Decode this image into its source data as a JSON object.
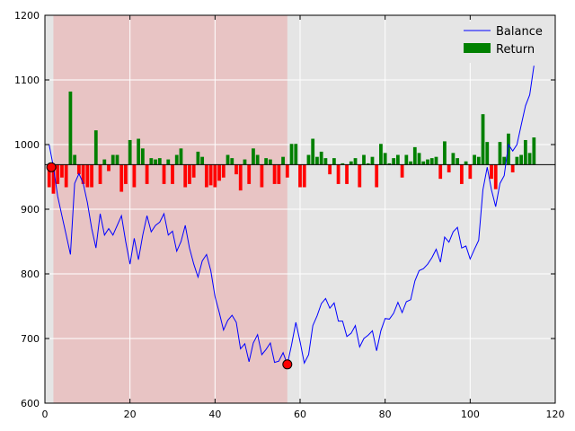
{
  "chart_data": {
    "type": "line",
    "title": "",
    "xlabel": "",
    "ylabel": "",
    "xlim": [
      0,
      120
    ],
    "ylim": [
      600,
      1200
    ],
    "x_ticks": [
      0,
      20,
      40,
      60,
      80,
      100,
      120
    ],
    "y_ticks": [
      600,
      700,
      800,
      900,
      1000,
      1100,
      1200
    ],
    "grid": true,
    "legend_position": "top-right",
    "background_color": "#e5e5e5",
    "highlight_region": {
      "x_start": 2,
      "x_end": 57,
      "color": "#e8c4c4"
    },
    "reference_line": {
      "y": 969,
      "color": "#000000"
    },
    "series": [
      {
        "name": "Balance",
        "kind": "line",
        "color": "#0000ff",
        "x": [
          1,
          2,
          3,
          4,
          5,
          6,
          7,
          8,
          9,
          10,
          11,
          12,
          13,
          14,
          15,
          16,
          17,
          18,
          19,
          20,
          21,
          22,
          23,
          24,
          25,
          26,
          27,
          28,
          29,
          30,
          31,
          32,
          33,
          34,
          35,
          36,
          37,
          38,
          39,
          40,
          41,
          42,
          43,
          44,
          45,
          46,
          47,
          48,
          49,
          50,
          51,
          52,
          53,
          54,
          55,
          56,
          57,
          58,
          59,
          60,
          61,
          62,
          63,
          64,
          65,
          66,
          67,
          68,
          69,
          70,
          71,
          72,
          73,
          74,
          75,
          76,
          77,
          78,
          79,
          80,
          81,
          82,
          83,
          84,
          85,
          86,
          87,
          88,
          89,
          90,
          91,
          92,
          93,
          94,
          95,
          96,
          97,
          98,
          99,
          100,
          101,
          102,
          103,
          104,
          105,
          106,
          107,
          108,
          109,
          110,
          111,
          112,
          113,
          114,
          115
        ],
        "values": [
          1000,
          965,
          920,
          890,
          860,
          830,
          940,
          955,
          940,
          910,
          870,
          840,
          893,
          860,
          870,
          860,
          875,
          890,
          850,
          815,
          855,
          822,
          860,
          890,
          865,
          875,
          880,
          893,
          860,
          866,
          835,
          850,
          875,
          840,
          815,
          795,
          820,
          830,
          805,
          765,
          740,
          713,
          728,
          736,
          725,
          684,
          692,
          664,
          693,
          706,
          675,
          683,
          693,
          663,
          665,
          678,
          660,
          690,
          725,
          695,
          662,
          675,
          720,
          735,
          754,
          762,
          747,
          755,
          727,
          727,
          703,
          708,
          720,
          687,
          700,
          705,
          712,
          681,
          712,
          731,
          730,
          739,
          756,
          740,
          757,
          760,
          789,
          805,
          808,
          815,
          825,
          838,
          818,
          857,
          849,
          865,
          872,
          840,
          843,
          823,
          838,
          852,
          930,
          965,
          930,
          904,
          940,
          952,
          1000,
          990,
          1000,
          1030,
          1060,
          1077,
          1122
        ]
      },
      {
        "name": "Return",
        "kind": "bar",
        "color": "#008000",
        "negative_color": "#ff0000",
        "x": [
          1,
          2,
          3,
          4,
          5,
          6,
          7,
          8,
          9,
          10,
          11,
          12,
          13,
          14,
          15,
          16,
          17,
          18,
          19,
          20,
          21,
          22,
          23,
          24,
          25,
          26,
          27,
          28,
          29,
          30,
          31,
          32,
          33,
          34,
          35,
          36,
          37,
          38,
          39,
          40,
          41,
          42,
          43,
          44,
          45,
          46,
          47,
          48,
          49,
          50,
          51,
          52,
          53,
          54,
          55,
          56,
          57,
          58,
          59,
          60,
          61,
          62,
          63,
          64,
          65,
          66,
          67,
          68,
          69,
          70,
          71,
          72,
          73,
          74,
          75,
          76,
          77,
          78,
          79,
          80,
          81,
          82,
          83,
          84,
          85,
          86,
          87,
          88,
          89,
          90,
          91,
          92,
          93,
          94,
          95,
          96,
          97,
          98,
          99,
          100,
          101,
          102,
          103,
          104,
          105,
          106,
          107,
          108,
          109,
          110,
          111,
          112,
          113,
          114,
          115
        ],
        "values": [
          -35,
          -45,
          -30,
          -20,
          -35,
          113,
          15,
          -15,
          -30,
          -35,
          -35,
          53,
          -30,
          8,
          -10,
          15,
          15,
          -42,
          -30,
          38,
          -35,
          40,
          25,
          -30,
          10,
          8,
          10,
          -30,
          8,
          -30,
          15,
          25,
          -35,
          -30,
          -20,
          20,
          12,
          -35,
          -32,
          -35,
          -25,
          -20,
          15,
          10,
          -15,
          -40,
          8,
          -30,
          25,
          15,
          -35,
          10,
          8,
          -30,
          -30,
          12,
          -20,
          32,
          32,
          -35,
          -35,
          15,
          40,
          12,
          20,
          10,
          -15,
          10,
          -30,
          2,
          -30,
          5,
          10,
          -35,
          15,
          2,
          12,
          -35,
          32,
          18,
          2,
          10,
          15,
          -20,
          15,
          5,
          27,
          18,
          5,
          8,
          10,
          12,
          -22,
          36,
          -12,
          18,
          10,
          -30,
          5,
          -22,
          15,
          12,
          78,
          35,
          -22,
          -38,
          35,
          12,
          48,
          -12,
          12,
          15,
          38,
          18,
          42
        ]
      }
    ],
    "markers": [
      {
        "x": 1.5,
        "y": 965,
        "color": "#ff0000"
      },
      {
        "x": 57,
        "y": 660,
        "color": "#ff0000"
      }
    ]
  }
}
